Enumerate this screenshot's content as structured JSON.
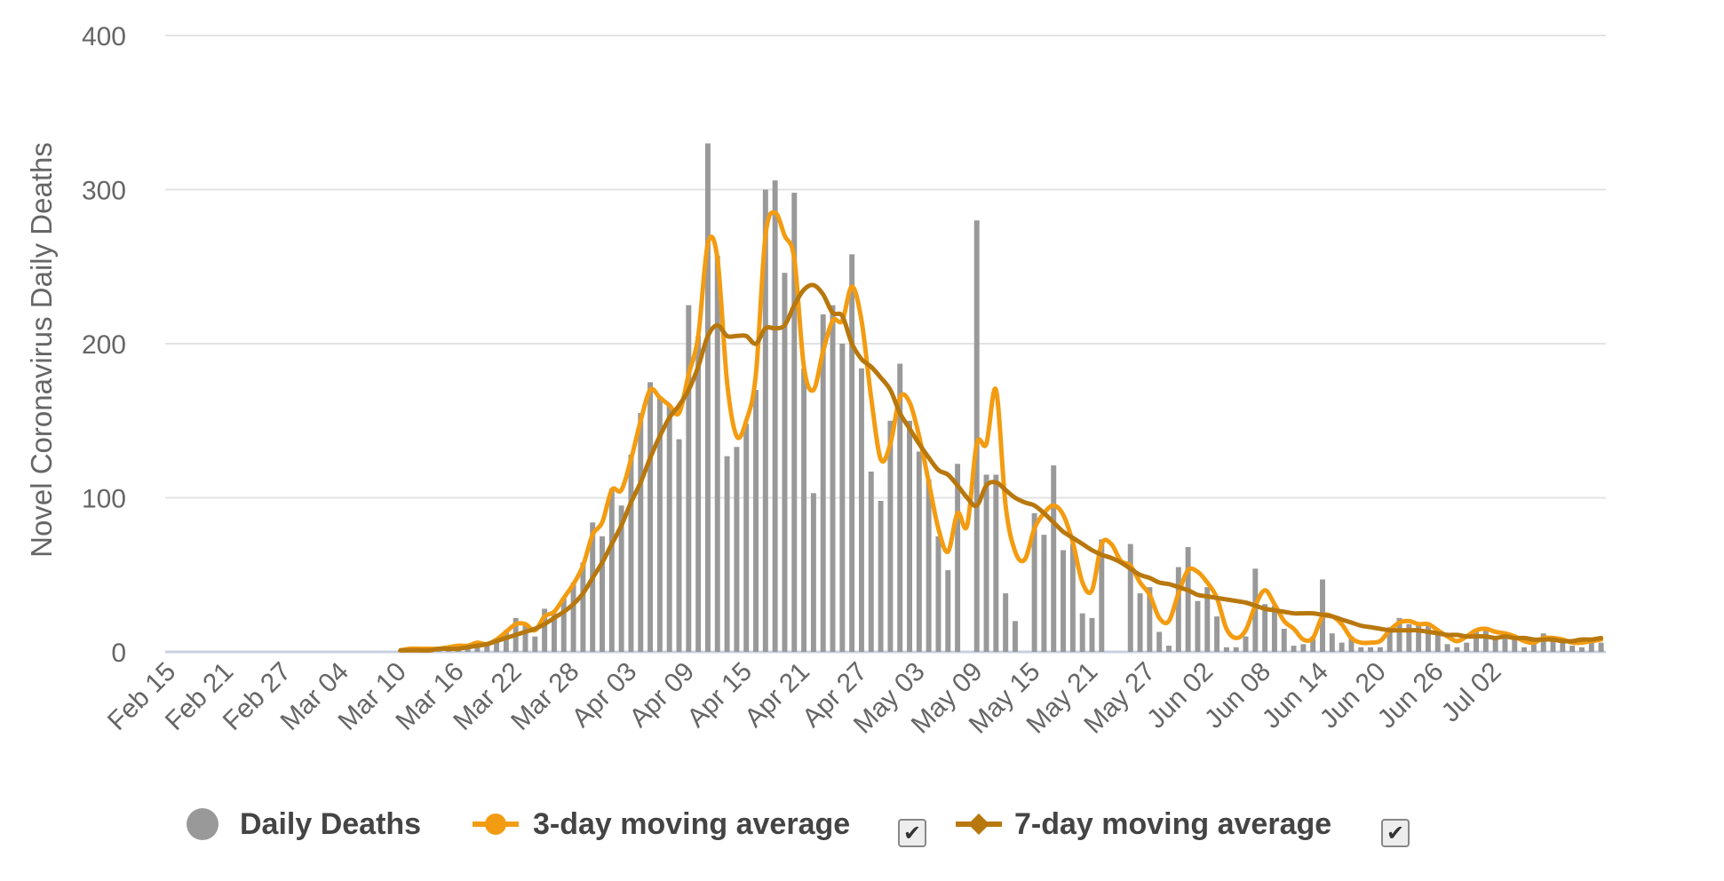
{
  "chart_data": {
    "type": "bar",
    "ylabel": "Novel Coronavirus Daily Deaths",
    "ylim": [
      0,
      400
    ],
    "yticks": [
      0,
      100,
      200,
      300,
      400
    ],
    "x_tick_labels": [
      "Feb 15",
      "Feb 21",
      "Feb 27",
      "Mar 04",
      "Mar 10",
      "Mar 16",
      "Mar 22",
      "Mar 28",
      "Apr 03",
      "Apr 09",
      "Apr 15",
      "Apr 21",
      "Apr 27",
      "May 03",
      "May 09",
      "May 15",
      "May 21",
      "May 27",
      "Jun 02",
      "Jun 08",
      "Jun 14",
      "Jun 20",
      "Jun 26",
      "Jul 02"
    ],
    "x_start": "Feb 15",
    "legend_position": "bottom",
    "grid": true,
    "series": [
      {
        "name": "Daily Deaths",
        "type": "bar",
        "color": "#999999",
        "values": [
          0,
          0,
          0,
          0,
          0,
          0,
          0,
          0,
          0,
          0,
          0,
          0,
          0,
          0,
          0,
          0,
          0,
          0,
          0,
          0,
          0,
          0,
          0,
          0,
          1,
          1,
          2,
          1,
          2,
          3,
          4,
          4,
          6,
          4,
          8,
          14,
          22,
          18,
          10,
          28,
          25,
          35,
          45,
          58,
          84,
          75,
          106,
          95,
          128,
          155,
          175,
          165,
          160,
          138,
          225,
          205,
          330,
          257,
          127,
          133,
          148,
          170,
          300,
          306,
          246,
          298,
          184,
          103,
          219,
          225,
          200,
          258,
          184,
          117,
          98,
          150,
          187,
          150,
          130,
          112,
          75,
          53,
          122,
          0,
          280,
          115,
          115,
          38,
          20,
          0,
          90,
          76,
          121,
          66,
          70,
          25,
          22,
          73,
          0,
          0,
          70,
          38,
          42,
          13,
          4,
          55,
          68,
          33,
          42,
          23,
          3,
          3,
          10,
          54,
          31,
          30,
          15,
          4,
          5,
          10,
          47,
          12,
          6,
          10,
          3,
          3,
          3,
          16,
          22,
          18,
          18,
          18,
          12,
          5,
          3,
          6,
          15,
          14,
          10,
          12,
          11,
          3,
          6,
          12,
          7,
          7,
          4,
          3,
          8,
          6
        ]
      },
      {
        "name": "3-day moving average",
        "type": "line",
        "color": "#F39C12",
        "values": [
          0,
          0,
          0,
          0,
          0,
          0,
          0,
          0,
          0,
          0,
          0,
          0,
          0,
          0,
          0,
          0,
          0,
          0,
          0,
          0,
          0,
          0,
          0,
          0,
          1,
          2,
          2,
          2,
          2,
          3,
          4,
          4,
          6,
          5,
          8,
          13,
          18,
          18,
          14,
          23,
          26,
          35,
          44,
          56,
          76,
          84,
          105,
          105,
          125,
          150,
          170,
          165,
          160,
          155,
          180,
          205,
          265,
          255,
          175,
          140,
          150,
          180,
          270,
          285,
          270,
          255,
          185,
          170,
          195,
          215,
          215,
          237,
          215,
          165,
          125,
          135,
          165,
          162,
          140,
          110,
          80,
          65,
          90,
          82,
          135,
          135,
          170,
          95,
          65,
          60,
          80,
          90,
          95,
          89,
          71,
          45,
          40,
          70,
          70,
          59,
          56,
          45,
          37,
          22,
          20,
          38,
          53,
          52,
          45,
          35,
          15,
          9,
          14,
          30,
          40,
          31,
          20,
          15,
          8,
          9,
          23,
          23,
          18,
          9,
          6,
          6,
          7,
          14,
          19,
          20,
          18,
          18,
          14,
          10,
          7,
          10,
          14,
          15,
          13,
          12,
          10,
          7,
          6,
          9,
          9,
          8,
          6,
          6,
          7,
          8
        ]
      },
      {
        "name": "7-day moving average",
        "type": "line",
        "color": "#B8780E",
        "values": [
          0,
          0,
          0,
          0,
          0,
          0,
          0,
          0,
          0,
          0,
          0,
          0,
          0,
          0,
          0,
          0,
          0,
          0,
          0,
          0,
          0,
          0,
          0,
          0,
          1,
          1,
          1,
          1,
          2,
          2,
          2,
          3,
          4,
          5,
          7,
          9,
          11,
          13,
          15,
          18,
          22,
          26,
          31,
          38,
          48,
          58,
          70,
          82,
          97,
          110,
          126,
          140,
          152,
          160,
          170,
          185,
          205,
          212,
          205,
          205,
          205,
          200,
          210,
          210,
          212,
          225,
          235,
          238,
          232,
          220,
          218,
          200,
          190,
          185,
          178,
          170,
          155,
          145,
          135,
          126,
          118,
          115,
          108,
          100,
          95,
          108,
          110,
          105,
          100,
          97,
          95,
          90,
          84,
          78,
          74,
          70,
          66,
          63,
          61,
          58,
          54,
          50,
          48,
          45,
          44,
          42,
          40,
          37,
          36,
          35,
          34,
          33,
          32,
          30,
          28,
          27,
          26,
          25,
          25,
          25,
          24,
          23,
          21,
          19,
          17,
          16,
          15,
          14,
          14,
          14,
          14,
          13,
          12,
          11,
          11,
          10,
          10,
          10,
          9,
          10,
          9,
          9,
          8,
          8,
          8,
          7,
          7,
          8,
          8,
          9
        ]
      }
    ]
  },
  "legend": {
    "daily_deaths": "Daily Deaths",
    "ma3": "3-day moving average",
    "ma7": "7-day moving average",
    "check_mark": "✔"
  }
}
